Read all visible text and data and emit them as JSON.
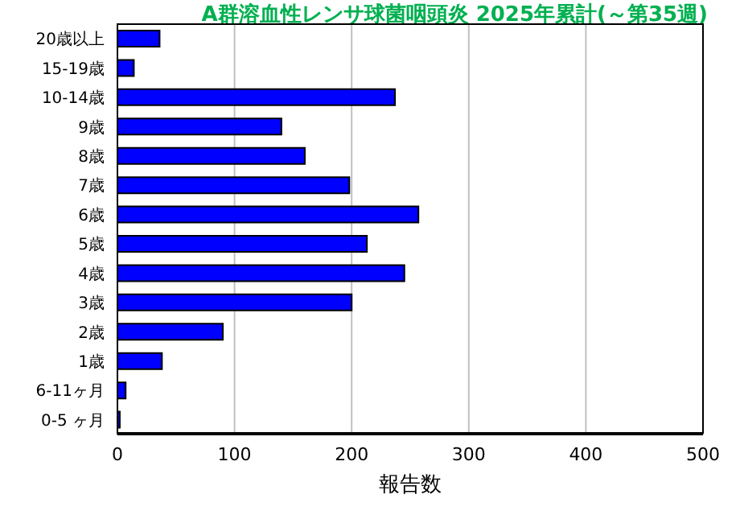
{
  "chart_data": {
    "type": "bar",
    "orientation": "horizontal",
    "title": "A群溶血性レンサ球菌咽頭炎 2025年累計(～第35週)",
    "xlabel": "報告数",
    "categories": [
      "20歳以上",
      "15-19歳",
      "10-14歳",
      "9歳",
      "8歳",
      "7歳",
      "6歳",
      "5歳",
      "4歳",
      "3歳",
      "2歳",
      "1歳",
      "6-11ヶ月",
      "0-5 ヶ月"
    ],
    "values": [
      36,
      14,
      237,
      140,
      160,
      198,
      257,
      213,
      245,
      200,
      90,
      38,
      7,
      2
    ],
    "color": "#0000ff",
    "xlim": [
      0,
      500
    ],
    "xticks": [
      0,
      100,
      200,
      300,
      400,
      500
    ],
    "grid": "x"
  }
}
